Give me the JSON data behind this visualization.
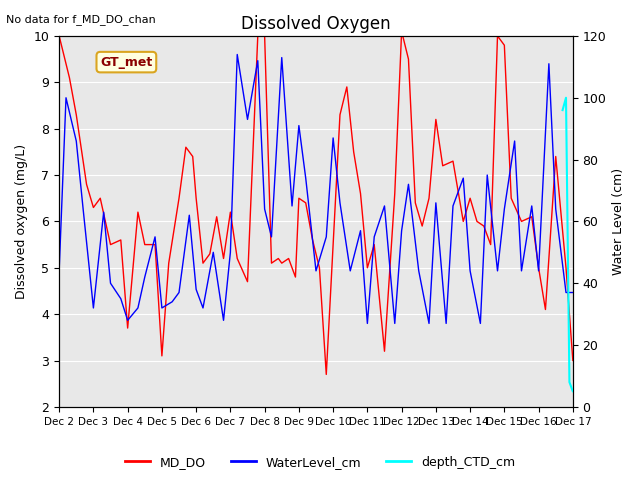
{
  "title": "Dissolved Oxygen",
  "note": "No data for f_MD_DO_chan",
  "annotation": "GT_met",
  "xlabel_ticks": [
    "Dec 2",
    "Dec 3",
    "Dec 4",
    "Dec 5",
    "Dec 6",
    "Dec 7",
    "Dec 8",
    "Dec 9",
    "Dec 10",
    "Dec 11",
    "Dec 12",
    "Dec 13",
    "Dec 14",
    "Dec 15",
    "Dec 16",
    "Dec 17"
  ],
  "ylabel_left": "Dissolved oxygen (mg/L)",
  "ylabel_right": "Water Level (cm)",
  "ylim_left": [
    2.0,
    10.0
  ],
  "ylim_right": [
    0,
    120
  ],
  "background_color": "#e8e8e8",
  "series": {
    "MD_DO": {
      "color": "red",
      "x": [
        0,
        0.3,
        0.5,
        0.8,
        1.0,
        1.2,
        1.5,
        1.8,
        2.0,
        2.3,
        2.5,
        2.8,
        3.0,
        3.2,
        3.5,
        3.7,
        3.9,
        4.0,
        4.2,
        4.4,
        4.6,
        4.8,
        5.0,
        5.2,
        5.5,
        5.8,
        6.0,
        6.2,
        6.4,
        6.5,
        6.7,
        6.9,
        7.0,
        7.2,
        7.4,
        7.6,
        7.8,
        8.0,
        8.2,
        8.4,
        8.6,
        8.8,
        9.0,
        9.2,
        9.5,
        9.8,
        10.0,
        10.2,
        10.4,
        10.6,
        10.8,
        11.0,
        11.2,
        11.5,
        11.8,
        12.0,
        12.2,
        12.4,
        12.6,
        12.8,
        13.0,
        13.2,
        13.5,
        13.8,
        14.0,
        14.2,
        14.5,
        14.8,
        15.0
      ],
      "y": [
        10.0,
        9.1,
        8.3,
        6.8,
        6.3,
        6.5,
        5.5,
        5.6,
        3.7,
        6.2,
        5.5,
        5.5,
        3.1,
        5.1,
        6.5,
        7.6,
        7.4,
        6.5,
        5.1,
        5.3,
        6.1,
        5.2,
        6.2,
        5.2,
        4.7,
        10.0,
        10.0,
        5.1,
        5.2,
        5.1,
        5.2,
        4.8,
        6.5,
        6.4,
        5.6,
        5.0,
        2.7,
        5.5,
        8.3,
        8.9,
        7.5,
        6.6,
        5.0,
        5.5,
        3.2,
        6.6,
        10.1,
        9.5,
        6.4,
        5.9,
        6.5,
        8.2,
        7.2,
        7.3,
        6.0,
        6.5,
        6.0,
        5.9,
        5.5,
        10.0,
        9.8,
        6.5,
        6.0,
        6.1,
        5.0,
        4.1,
        7.4,
        5.0,
        3.0
      ]
    },
    "WaterLevel_cm": {
      "color": "blue",
      "x": [
        0,
        0.2,
        0.5,
        0.7,
        1.0,
        1.3,
        1.5,
        1.8,
        2.0,
        2.3,
        2.5,
        2.8,
        3.0,
        3.3,
        3.5,
        3.8,
        4.0,
        4.2,
        4.5,
        4.8,
        5.0,
        5.2,
        5.5,
        5.8,
        6.0,
        6.2,
        6.5,
        6.8,
        7.0,
        7.2,
        7.5,
        7.8,
        8.0,
        8.2,
        8.5,
        8.8,
        9.0,
        9.2,
        9.5,
        9.8,
        10.0,
        10.2,
        10.5,
        10.8,
        11.0,
        11.3,
        11.5,
        11.8,
        12.0,
        12.3,
        12.5,
        12.8,
        13.0,
        13.3,
        13.5,
        13.8,
        14.0,
        14.3,
        14.5,
        14.8,
        15.0
      ],
      "y": [
        44,
        100,
        86,
        64,
        32,
        63,
        40,
        35,
        28,
        32,
        42,
        55,
        32,
        34,
        37,
        62,
        38,
        32,
        50,
        28,
        50,
        114,
        93,
        112,
        64,
        55,
        113,
        65,
        91,
        74,
        44,
        55,
        87,
        66,
        44,
        57,
        27,
        55,
        65,
        27,
        57,
        72,
        44,
        27,
        66,
        27,
        65,
        74,
        44,
        27,
        75,
        44,
        64,
        86,
        44,
        65,
        44,
        111,
        64,
        37,
        37
      ]
    },
    "depth_CTD_cm": {
      "color": "cyan",
      "x": [
        14.7,
        14.8,
        14.9,
        15.0,
        15.05
      ],
      "y": [
        96,
        100,
        8,
        5,
        5
      ]
    }
  },
  "legend": [
    {
      "label": "MD_DO",
      "color": "red"
    },
    {
      "label": "WaterLevel_cm",
      "color": "blue"
    },
    {
      "label": "depth_CTD_cm",
      "color": "cyan"
    }
  ]
}
